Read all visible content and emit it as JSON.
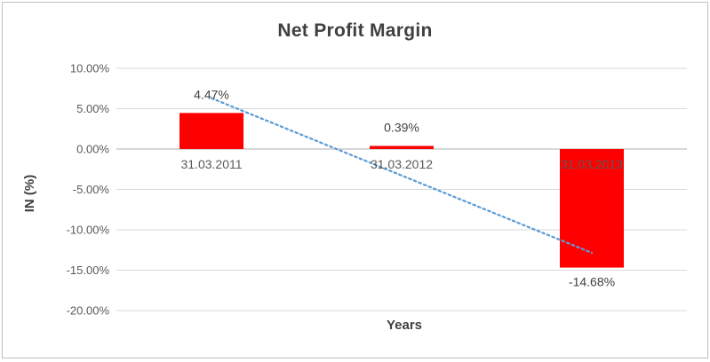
{
  "chart_data": {
    "type": "bar",
    "title": "Net Profit Margin",
    "xlabel": "Years",
    "ylabel": "IN (%)",
    "categories": [
      "31.03.2011",
      "31.03.2012",
      "31.03.2013"
    ],
    "values": [
      4.47,
      0.39,
      -14.68
    ],
    "value_labels": [
      "4.47%",
      "0.39%",
      "-14.68%"
    ],
    "ytick_values": [
      10,
      5,
      0,
      -5,
      -10,
      -15,
      -20
    ],
    "ytick_labels": [
      "10.00%",
      "5.00%",
      "0.00%",
      "-5.00%",
      "-10.00%",
      "-15.00%",
      "-20.00%"
    ],
    "ylim": [
      -20,
      10
    ],
    "grid": true,
    "legend": "none",
    "bar_color": "#FF0000",
    "trendline": {
      "type": "linear",
      "style": "dotted",
      "color": "#5B9BD5",
      "start_value": 6.3,
      "end_value": -12.85
    },
    "colors": {
      "gridline": "#D9D9D9",
      "axis_line": "#BFBFBF",
      "tick_text": "#595959",
      "category_text": "#595959",
      "value_text": "#404040",
      "title_text": "#404040",
      "frame_border": "#BFBFBF"
    }
  }
}
